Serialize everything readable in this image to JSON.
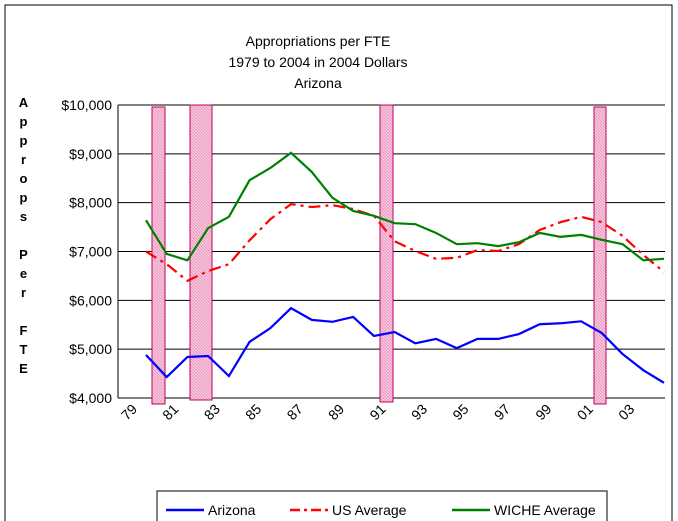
{
  "chart_data": {
    "type": "line",
    "title": "Appropriations per FTE",
    "subtitle": [
      "1979 to 2004 in 2004 Dollars",
      "Arizona"
    ],
    "y_label": "Approps Per FTE",
    "categories": [
      "79",
      null,
      "81",
      null,
      "83",
      null,
      "85",
      null,
      "87",
      null,
      "89",
      null,
      "91",
      null,
      "93",
      null,
      "95",
      null,
      "97",
      null,
      "99",
      null,
      "01",
      null,
      "03",
      null
    ],
    "series": [
      {
        "name": "Arizona",
        "color": "#0000ff",
        "dash": false,
        "values": [
          4880,
          4430,
          4840,
          4860,
          4450,
          5150,
          5430,
          5840,
          5600,
          5560,
          5660,
          5270,
          5350,
          5120,
          5210,
          5020,
          5210,
          5210,
          5310,
          5510,
          5530,
          5570,
          5330,
          4900,
          4570,
          4310
        ]
      },
      {
        "name": "US Average",
        "color": "#ff0000",
        "dash": true,
        "values": [
          7000,
          6740,
          6400,
          6600,
          6740,
          7230,
          7660,
          7970,
          7910,
          7950,
          7870,
          7730,
          7210,
          7010,
          6850,
          6870,
          7030,
          7010,
          7150,
          7440,
          7600,
          7710,
          7600,
          7320,
          6930,
          6580
        ]
      },
      {
        "name": "WICHE Average",
        "color": "#008000",
        "dash": false,
        "values": [
          7640,
          6950,
          6820,
          7480,
          7710,
          8460,
          8710,
          9020,
          8630,
          8100,
          7830,
          7730,
          7580,
          7560,
          7380,
          7150,
          7170,
          7110,
          7190,
          7380,
          7300,
          7340,
          7240,
          7150,
          6820,
          6850
        ]
      }
    ],
    "ylim": [
      4000,
      10000
    ],
    "yticks": [
      {
        "value": 4000,
        "label": "$4,000"
      },
      {
        "value": 5000,
        "label": "$5,000"
      },
      {
        "value": 6000,
        "label": "$6,000"
      },
      {
        "value": 7000,
        "label": "$7,000"
      },
      {
        "value": 8000,
        "label": "$8,000"
      },
      {
        "value": 9000,
        "label": "$9,000"
      },
      {
        "value": 10000,
        "label": "$10,000"
      }
    ],
    "grid": true,
    "legend": "bottom"
  }
}
